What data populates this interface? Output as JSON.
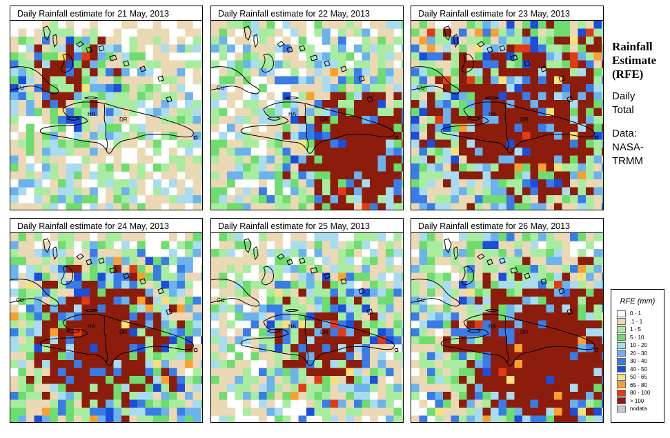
{
  "panels": [
    {
      "title": "Daily Rainfall estimate for  21 May, 2013"
    },
    {
      "title": "Daily Rainfall estimate for  22 May, 2013"
    },
    {
      "title": "Daily Rainfall estimate for  23 May, 2013"
    },
    {
      "title": "Daily Rainfall estimate for  24 May, 2013"
    },
    {
      "title": "Daily Rainfall estimate for  25 May, 2013"
    },
    {
      "title": "Daily Rainfall estimate for  26 May, 2013"
    }
  ],
  "map_labels": {
    "cuba": "CU",
    "haiti": "HA",
    "dominican_republic": "DR"
  },
  "sidebar": {
    "title_line1": "Rainfall",
    "title_line2": "Estimate",
    "title_line3": "(RFE)",
    "period_line1": "Daily",
    "period_line2": "Total",
    "source_line1": "Data:",
    "source_line2": "NASA-",
    "source_line3": "TRMM"
  },
  "legend": {
    "title": "RFE (mm)",
    "items": [
      {
        "label": "0 - 1",
        "color": "#ffffff"
      },
      {
        "label": ".1 - 1",
        "color": "#ebd8b4"
      },
      {
        "label": "1 - 5",
        "color": "#a8eca0"
      },
      {
        "label": "5 - 10",
        "color": "#6fdc6f"
      },
      {
        "label": "10 - 20",
        "color": "#a9dcf0"
      },
      {
        "label": "20 - 30",
        "color": "#6cb2ec"
      },
      {
        "label": "30 - 40",
        "color": "#3a7ce6"
      },
      {
        "label": "40 - 50",
        "color": "#1c4ed8"
      },
      {
        "label": "50 - 65",
        "color": "#f8e07c"
      },
      {
        "label": "65 - 80",
        "color": "#f8a030"
      },
      {
        "label": "80 - 100",
        "color": "#e03c14"
      },
      {
        "label": "> 100",
        "color": "#8c1c0c"
      },
      {
        "label": "nodata",
        "color": "#c8c8c8"
      }
    ]
  }
}
